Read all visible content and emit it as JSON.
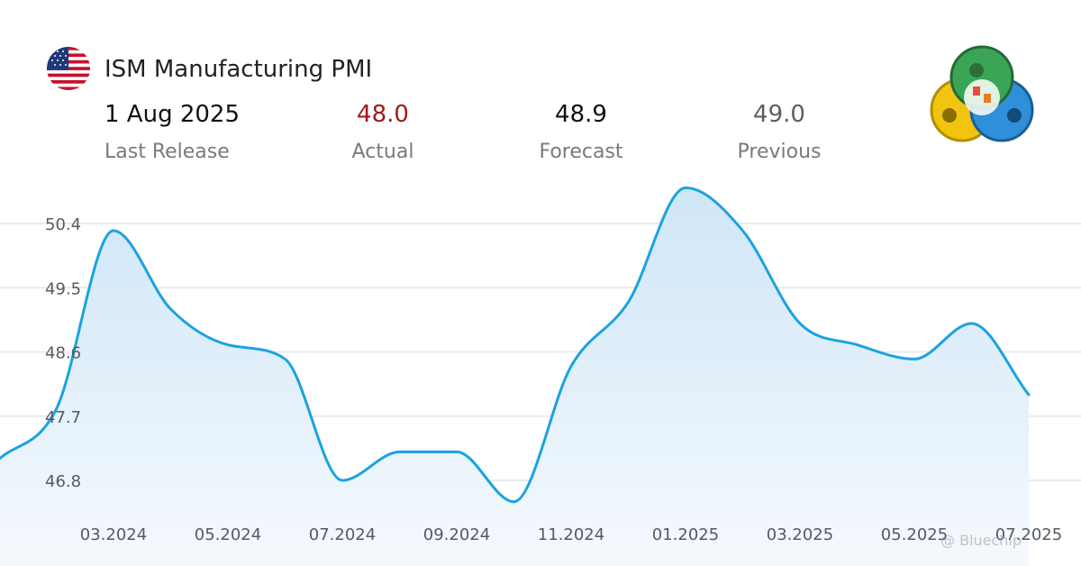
{
  "header": {
    "title": "ISM Manufacturing PMI",
    "flag_icon": "us-flag-icon",
    "logo_icon": "metatrader-logo-icon"
  },
  "stats": {
    "last_release": {
      "value": "1 Aug 2025",
      "label": "Last Release",
      "color": "#111111"
    },
    "actual": {
      "value": "48.0",
      "label": "Actual",
      "color": "#a11a1a"
    },
    "forecast": {
      "value": "48.9",
      "label": "Forecast",
      "color": "#111111"
    },
    "previous": {
      "value": "49.0",
      "label": "Previous",
      "color": "#5a5f66"
    }
  },
  "watermark": "@ Bluechip",
  "colors": {
    "line": "#1aa3e0",
    "fill_top": "#cfe6f8",
    "fill_bottom": "#f5f9fd",
    "grid": "#e8ebef"
  },
  "chart_data": {
    "type": "area",
    "title": "ISM Manufacturing PMI",
    "xlabel": "",
    "ylabel": "",
    "grid": true,
    "y_ticks": [
      "50.4",
      "49.5",
      "48.6",
      "47.7",
      "46.8"
    ],
    "y_tick_values": [
      50.4,
      49.5,
      48.6,
      47.7,
      46.8
    ],
    "ylim": [
      46.2,
      50.95
    ],
    "x_ticks": [
      "03.2024",
      "05.2024",
      "07.2024",
      "09.2024",
      "11.2024",
      "01.2025",
      "03.2025",
      "05.2025",
      "07.2025"
    ],
    "x_tick_months": [
      2,
      4,
      6,
      8,
      10,
      12,
      14,
      16,
      18
    ],
    "x_month_origin": "2024-01",
    "series": [
      {
        "name": "",
        "months": [
          "2024-01",
          "2024-02",
          "2024-03",
          "2024-04",
          "2024-05",
          "2024-06",
          "2024-07",
          "2024-08",
          "2024-09",
          "2024-10",
          "2024-11",
          "2024-12",
          "2025-01",
          "2025-02",
          "2025-03",
          "2025-04",
          "2025-05",
          "2025-06",
          "2025-07"
        ],
        "values": [
          47.1,
          47.8,
          50.3,
          49.2,
          48.7,
          48.5,
          46.8,
          47.2,
          47.2,
          46.5,
          48.4,
          49.3,
          50.9,
          50.3,
          49.0,
          48.7,
          48.5,
          49.0,
          48.0
        ]
      }
    ]
  }
}
